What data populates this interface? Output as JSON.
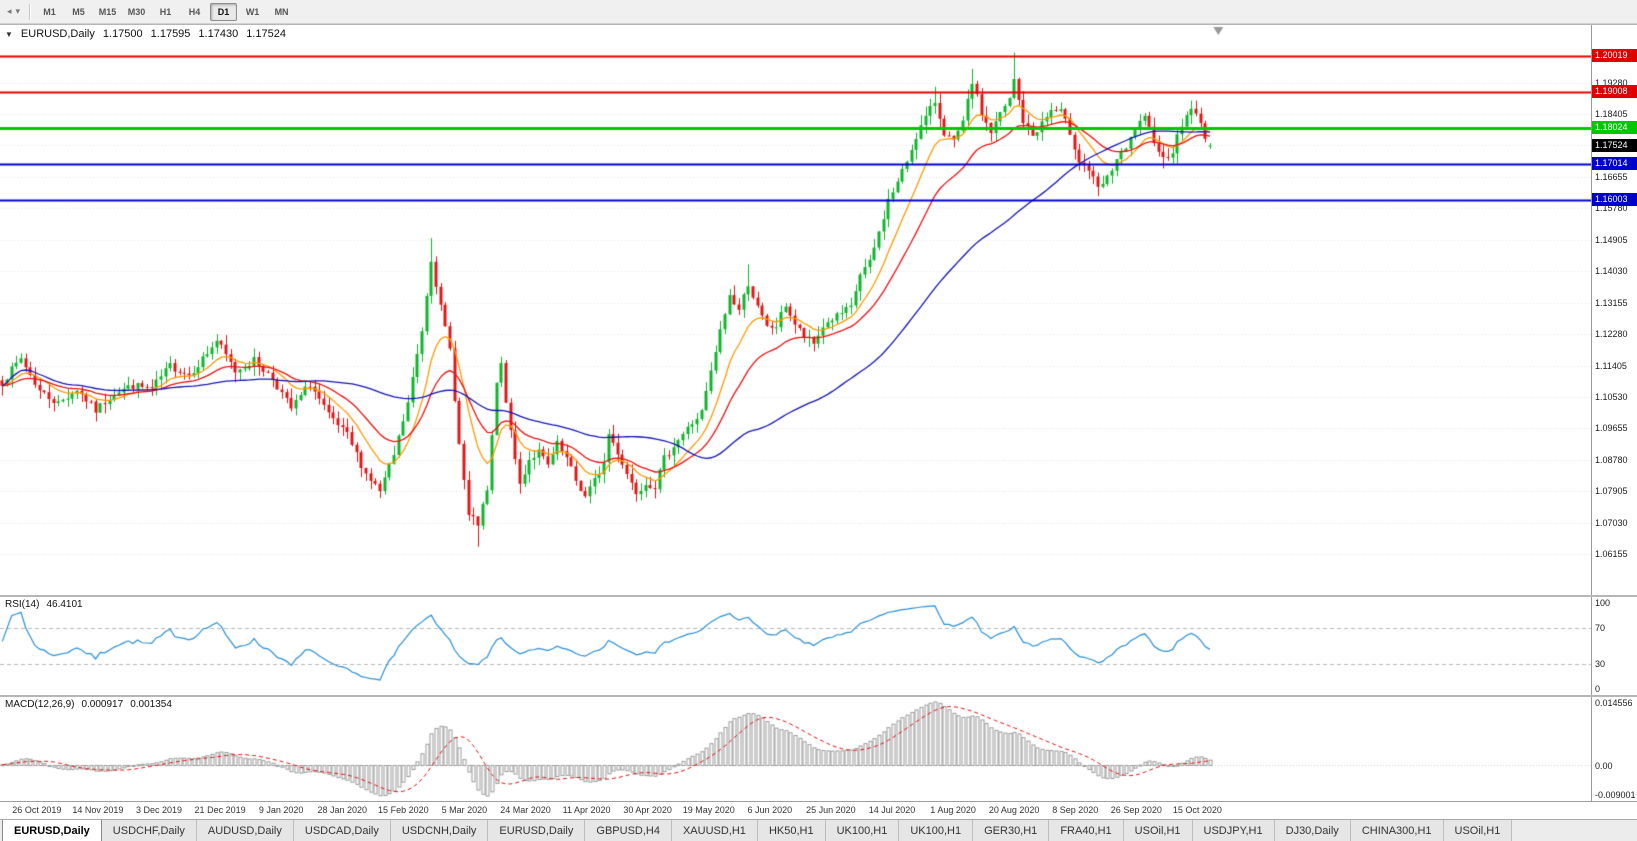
{
  "toolbar": {
    "icons": [
      {
        "name": "toolbar-overflow-icon",
        "glyph": "◂"
      },
      {
        "name": "toolbar-dropdown-icon",
        "glyph": "▾"
      }
    ],
    "timeframes": [
      "M1",
      "M5",
      "M15",
      "M30",
      "H1",
      "H4",
      "D1",
      "W1",
      "MN"
    ],
    "selected": "D1"
  },
  "chart": {
    "header": {
      "symbol": "EURUSD,Daily",
      "open": "1.17500",
      "high": "1.17595",
      "low": "1.17430",
      "close": "1.17524"
    },
    "price_axis": {
      "range": {
        "max": 1.2088,
        "min": 1.0502
      },
      "gridlines": [
        "1.19280",
        "1.18405",
        "1.17530",
        "1.16655",
        "1.15780",
        "1.14905",
        "1.14030",
        "1.13155",
        "1.12280",
        "1.11405",
        "1.10530",
        "1.09655",
        "1.08780",
        "1.07905",
        "1.07030",
        "1.06155"
      ]
    },
    "levels": [
      {
        "value": 1.20019,
        "label": "1.20019",
        "color": "#e00000",
        "width": 2
      },
      {
        "value": 1.19008,
        "label": "1.19008",
        "color": "#e00000",
        "width": 2
      },
      {
        "value": 1.18024,
        "label": "1.18024",
        "color": "#00c800",
        "width": 3
      },
      {
        "value": 1.17014,
        "label": "1.17014",
        "color": "#0000cc",
        "width": 2
      },
      {
        "value": 1.16003,
        "label": "1.16003",
        "color": "#0000cc",
        "width": 2
      }
    ],
    "current_price": {
      "value": 1.17524,
      "label": "1.17524",
      "color": "#000000"
    }
  },
  "rsi": {
    "name": "RSI(14)",
    "value": "46.4101",
    "axis": [
      "100",
      "70",
      "30",
      "0"
    ],
    "levels": [
      70,
      30
    ],
    "color": "#2a8fd8"
  },
  "macd": {
    "name": "MACD(12,26,9)",
    "value_main": "0.000917",
    "value_signal": "0.001354",
    "axis_max": "0.014556",
    "axis_zero": "0.00",
    "axis_min": "-0.009001",
    "signal_color": "#e01010",
    "hist_color": "#9b9b9b"
  },
  "x_axis": {
    "dates": [
      "26 Oct 2019",
      "14 Nov 2019",
      "3 Dec 2019",
      "21 Dec 2019",
      "9 Jan 2020",
      "28 Jan 2020",
      "15 Feb 2020",
      "5 Mar 2020",
      "24 Mar 2020",
      "11 Apr 2020",
      "30 Apr 2020",
      "19 May 2020",
      "6 Jun 2020",
      "25 Jun 2020",
      "14 Jul 2020",
      "1 Aug 2020",
      "20 Aug 2020",
      "8 Sep 2020",
      "26 Sep 2020",
      "15 Oct 2020"
    ]
  },
  "tab_bar": {
    "active": 0,
    "tabs": [
      "EURUSD,Daily",
      "USDCHF,Daily",
      "AUDUSD,Daily",
      "USDCAD,Daily",
      "USDCNH,Daily",
      "EURUSD,Daily",
      "GBPUSD,H4",
      "XAUUSD,H1",
      "HK50,H1",
      "UK100,H1",
      "UK100,H1",
      "GER30,H1",
      "FRA40,H1",
      "USOil,H1",
      "USDJPY,H1",
      "DJ30,Daily",
      "CHINA300,H1",
      "USOil,H1"
    ]
  },
  "chart_data": {
    "type": "candlestick",
    "title": "EURUSD,Daily",
    "symbol": "EURUSD",
    "timeframe": "D1",
    "candle_count": 260,
    "shift_fraction": 0.762,
    "seed": 7,
    "noise": 0.0022,
    "wick": 0.0028,
    "ylim": [
      1.0502,
      1.2088
    ],
    "last_candle": {
      "o": 1.175,
      "h": 1.17595,
      "l": 1.1743,
      "c": 1.17524
    },
    "anchors": [
      [
        0,
        1.1095
      ],
      [
        4,
        1.116
      ],
      [
        8,
        1.107
      ],
      [
        12,
        1.1035
      ],
      [
        16,
        1.1075
      ],
      [
        20,
        1.1015
      ],
      [
        24,
        1.1065
      ],
      [
        28,
        1.1085
      ],
      [
        32,
        1.1075
      ],
      [
        36,
        1.114
      ],
      [
        40,
        1.1115
      ],
      [
        44,
        1.1175
      ],
      [
        46,
        1.121
      ],
      [
        50,
        1.1125
      ],
      [
        54,
        1.1155
      ],
      [
        58,
        1.1105
      ],
      [
        62,
        1.102
      ],
      [
        66,
        1.109
      ],
      [
        70,
        1.1
      ],
      [
        74,
        1.0945
      ],
      [
        78,
        1.084
      ],
      [
        81,
        1.079
      ],
      [
        84,
        1.089
      ],
      [
        87,
        1.1035
      ],
      [
        90,
        1.124
      ],
      [
        92,
        1.144
      ],
      [
        94,
        1.13
      ],
      [
        96,
        1.1185
      ],
      [
        98,
        1.092
      ],
      [
        100,
        1.072
      ],
      [
        102,
        1.07
      ],
      [
        104,
        1.079
      ],
      [
        106,
        1.109
      ],
      [
        107,
        1.114
      ],
      [
        109,
        1.095
      ],
      [
        111,
        1.081
      ],
      [
        113,
        1.088
      ],
      [
        115,
        1.09
      ],
      [
        117,
        1.086
      ],
      [
        119,
        1.092
      ],
      [
        121,
        1.088
      ],
      [
        123,
        1.082
      ],
      [
        125,
        1.0775
      ],
      [
        127,
        1.082
      ],
      [
        129,
        1.087
      ],
      [
        130,
        1.095
      ],
      [
        132,
        1.09
      ],
      [
        134,
        1.084
      ],
      [
        136,
        1.079
      ],
      [
        138,
        1.0815
      ],
      [
        140,
        1.0805
      ],
      [
        142,
        1.088
      ],
      [
        144,
        1.092
      ],
      [
        146,
        1.095
      ],
      [
        148,
        1.098
      ],
      [
        150,
        1.101
      ],
      [
        152,
        1.112
      ],
      [
        154,
        1.1235
      ],
      [
        156,
        1.1335
      ],
      [
        158,
        1.1295
      ],
      [
        160,
        1.137
      ],
      [
        162,
        1.13
      ],
      [
        164,
        1.1245
      ],
      [
        166,
        1.125
      ],
      [
        168,
        1.131
      ],
      [
        170,
        1.1255
      ],
      [
        172,
        1.122
      ],
      [
        174,
        1.12
      ],
      [
        176,
        1.125
      ],
      [
        178,
        1.127
      ],
      [
        180,
        1.1285
      ],
      [
        182,
        1.13
      ],
      [
        184,
        1.1395
      ],
      [
        186,
        1.1425
      ],
      [
        188,
        1.151
      ],
      [
        190,
        1.16
      ],
      [
        192,
        1.165
      ],
      [
        194,
        1.171
      ],
      [
        196,
        1.178
      ],
      [
        198,
        1.183
      ],
      [
        200,
        1.1875
      ],
      [
        202,
        1.179
      ],
      [
        204,
        1.176
      ],
      [
        206,
        1.1815
      ],
      [
        208,
        1.193
      ],
      [
        210,
        1.184
      ],
      [
        212,
        1.179
      ],
      [
        214,
        1.184
      ],
      [
        216,
        1.188
      ],
      [
        217,
        1.1935
      ],
      [
        219,
        1.182
      ],
      [
        221,
        1.178
      ],
      [
        223,
        1.1815
      ],
      [
        225,
        1.185
      ],
      [
        227,
        1.1845
      ],
      [
        229,
        1.179
      ],
      [
        231,
        1.171
      ],
      [
        233,
        1.1685
      ],
      [
        235,
        1.163
      ],
      [
        237,
        1.166
      ],
      [
        239,
        1.1715
      ],
      [
        241,
        1.174
      ],
      [
        243,
        1.18
      ],
      [
        245,
        1.1825
      ],
      [
        247,
        1.177
      ],
      [
        249,
        1.1715
      ],
      [
        251,
        1.174
      ],
      [
        253,
        1.181
      ],
      [
        255,
        1.186
      ],
      [
        257,
        1.181
      ],
      [
        259,
        1.17524
      ]
    ],
    "high_overrides": [
      [
        92,
        1.1495
      ],
      [
        160,
        1.1422
      ],
      [
        200,
        1.1916
      ],
      [
        208,
        1.1966
      ],
      [
        217,
        1.2011
      ]
    ],
    "low_overrides": [
      [
        102,
        1.0636
      ],
      [
        235,
        1.1612
      ],
      [
        249,
        1.1689
      ]
    ],
    "up_color": "#0db52a",
    "down_color": "#e01515",
    "moving_averages": [
      {
        "type": "ema",
        "period": 10,
        "color": "#ff9900"
      },
      {
        "type": "ema",
        "period": 22,
        "color": "#ee1111"
      },
      {
        "type": "sma",
        "period": 55,
        "color": "#1515b5"
      }
    ],
    "indicators": {
      "rsi_period": 14,
      "macd": [
        12,
        26,
        9
      ]
    }
  }
}
